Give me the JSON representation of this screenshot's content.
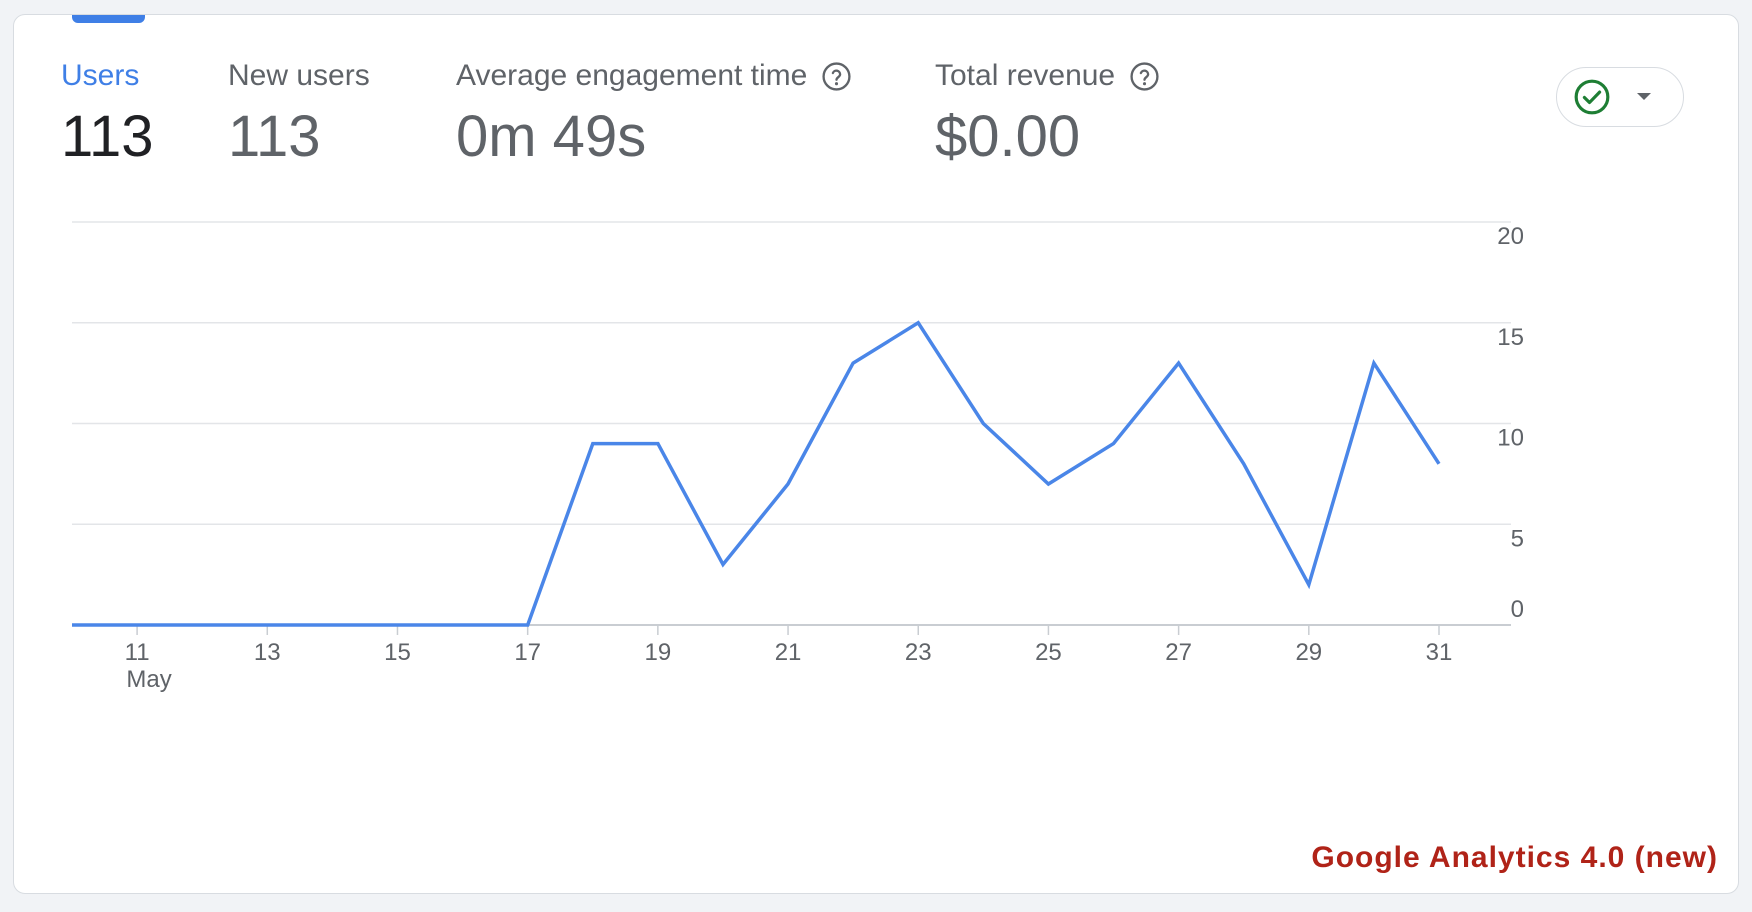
{
  "metrics": [
    {
      "label": "Users",
      "value": "113",
      "active": true,
      "help": false
    },
    {
      "label": "New users",
      "value": "113",
      "active": false,
      "help": false
    },
    {
      "label": "Average engagement time",
      "value": "0m 49s",
      "active": false,
      "help": true
    },
    {
      "label": "Total revenue",
      "value": "$0.00",
      "active": false,
      "help": true
    }
  ],
  "compare_control": {
    "icon": "check-circle-icon",
    "dropdown_icon": "caret-down-icon"
  },
  "watermark": "Google Analytics 4.0 (new)",
  "colors": {
    "accent": "#3f7fe6",
    "line": "#4a86e8",
    "check": "#1e7e34",
    "watermark": "#b02318"
  },
  "chart_data": {
    "type": "line",
    "x": [
      "10",
      "11",
      "12",
      "13",
      "14",
      "15",
      "16",
      "17",
      "18",
      "19",
      "20",
      "21",
      "22",
      "23",
      "24",
      "25",
      "26",
      "27",
      "28",
      "29",
      "30",
      "31"
    ],
    "series": [
      {
        "values": [
          0,
          0,
          0,
          0,
          0,
          0,
          0,
          0,
          9,
          9,
          3,
          7,
          13,
          15,
          10,
          7,
          9,
          13,
          8,
          2,
          13,
          8
        ]
      }
    ],
    "x_ticks": [
      "11",
      "13",
      "15",
      "17",
      "19",
      "21",
      "23",
      "25",
      "27",
      "29",
      "31"
    ],
    "x_month_label": "May",
    "y_ticks": [
      "0",
      "5",
      "10",
      "15",
      "20"
    ],
    "ylim": [
      0,
      20
    ],
    "y_axis_position": "right",
    "grid": true
  }
}
